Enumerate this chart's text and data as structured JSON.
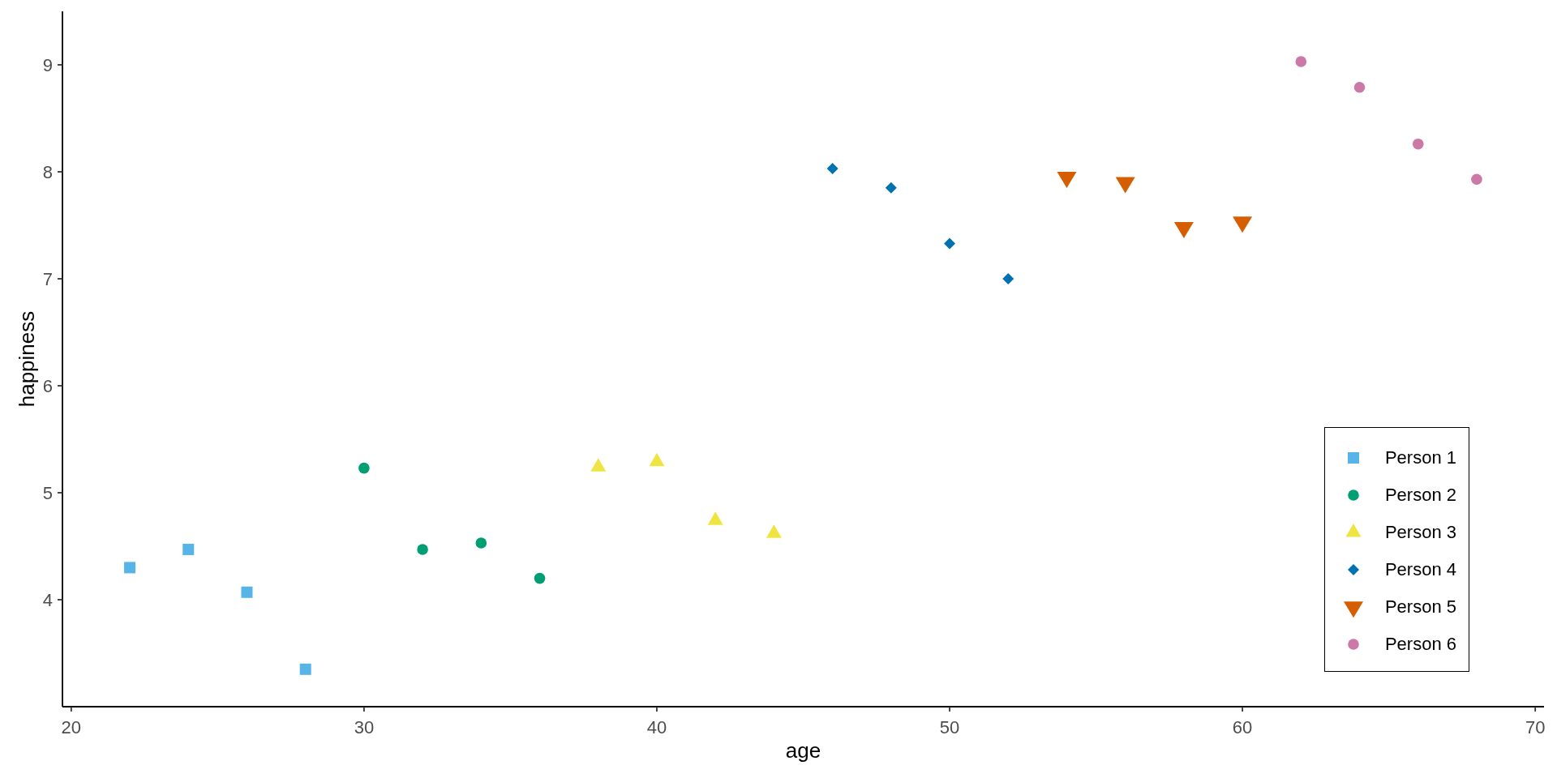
{
  "chart_data": {
    "type": "scatter",
    "xlabel": "age",
    "ylabel": "happiness",
    "xlim": [
      19.7,
      70.3
    ],
    "xticks": [
      20,
      30,
      40,
      50,
      60,
      70
    ],
    "ylim": [
      3.0,
      9.5
    ],
    "yticks": [
      4,
      5,
      6,
      7,
      8,
      9
    ],
    "legend": "bottom right",
    "series": [
      {
        "name": "Person 1",
        "color": "#56b4e9",
        "marker": "square",
        "x": [
          22,
          24,
          26,
          28
        ],
        "values": [
          4.3,
          4.47,
          4.07,
          3.35
        ]
      },
      {
        "name": "Person 2",
        "color": "#009e73",
        "marker": "circle",
        "x": [
          30,
          32,
          34,
          36
        ],
        "values": [
          5.23,
          4.47,
          4.53,
          4.2
        ]
      },
      {
        "name": "Person 3",
        "color": "#f0e442",
        "marker": "triangle",
        "x": [
          38,
          40,
          42,
          44
        ],
        "values": [
          5.24,
          5.29,
          4.74,
          4.62
        ]
      },
      {
        "name": "Person 4",
        "color": "#0072b2",
        "marker": "diamond",
        "x": [
          46,
          48,
          50,
          52
        ],
        "values": [
          8.03,
          7.85,
          7.33,
          7.0
        ]
      },
      {
        "name": "Person 5",
        "color": "#d55e00",
        "marker": "triangle-down",
        "x": [
          54,
          56,
          58,
          60
        ],
        "values": [
          7.95,
          7.9,
          7.48,
          7.53
        ]
      },
      {
        "name": "Person 6",
        "color": "#cc79a7",
        "marker": "circle",
        "x": [
          62,
          64,
          66,
          68
        ],
        "values": [
          9.03,
          8.79,
          8.26,
          7.93
        ]
      }
    ]
  }
}
